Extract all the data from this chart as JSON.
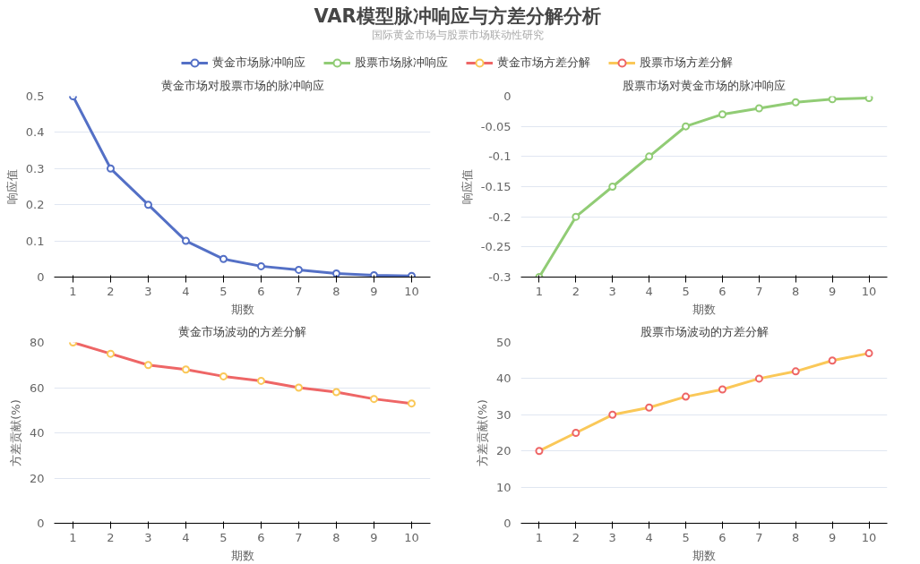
{
  "chart_data": [
    {
      "type": "line",
      "title": "黄金市场对股票市场的脉冲响应",
      "annotations": [
        "VAR模型脉冲响应与方差分解分析",
        "国际黄金市场与股票市场联动性研究"
      ],
      "xlabel": "期数",
      "ylabel": "响应值",
      "categories": [
        "1",
        "2",
        "3",
        "4",
        "5",
        "6",
        "7",
        "8",
        "9",
        "10"
      ],
      "series": [
        {
          "name": "黄金市场脉冲响应",
          "color": "#5470c6",
          "colors": [
            "#5470c6",
            "#5470c6",
            "#5470c6",
            "#5470c6",
            "#5470c6",
            "#5470c6",
            "#5470c6",
            "#5470c6",
            "#5470c6",
            "#5470c6"
          ],
          "values": [
            0.5,
            0.3,
            0.2,
            0.1,
            0.05,
            0.03,
            0.02,
            0.01,
            0.005,
            0.003
          ]
        }
      ],
      "ylim": [
        0,
        0.5
      ],
      "yticks": [
        0,
        0.1,
        0.2,
        0.3,
        0.4,
        0.5
      ],
      "grid": "y",
      "legend": "top",
      "marker": "circle",
      "line_style": "solid"
    },
    {
      "type": "line",
      "title": "股票市场对黄金市场的脉冲响应",
      "xlabel": "期数",
      "ylabel": "响应值",
      "categories": [
        "1",
        "2",
        "3",
        "4",
        "5",
        "6",
        "7",
        "8",
        "9",
        "10"
      ],
      "series": [
        {
          "name": "股票市场脉冲响应",
          "color": "#91cc75",
          "colors": [
            "#91cc75",
            "#91cc75",
            "#91cc75",
            "#91cc75",
            "#91cc75",
            "#91cc75",
            "#91cc75",
            "#91cc75",
            "#91cc75",
            "#91cc75"
          ],
          "values": [
            -0.3,
            -0.2,
            -0.15,
            -0.1,
            -0.05,
            -0.03,
            -0.02,
            -0.01,
            -0.005,
            -0.003
          ]
        }
      ],
      "ylim": [
        -0.3,
        0
      ],
      "yticks": [
        -0.3,
        -0.25,
        -0.2,
        -0.15,
        -0.1,
        -0.05,
        0
      ],
      "grid": "y",
      "legend": "top",
      "marker": "circle",
      "line_style": "solid"
    },
    {
      "type": "line",
      "title": "黄金市场波动的方差分解",
      "xlabel": "期数",
      "ylabel": "方差贡献(%)",
      "categories": [
        "1",
        "2",
        "3",
        "4",
        "5",
        "6",
        "7",
        "8",
        "9",
        "10"
      ],
      "series": [
        {
          "name": "黄金市场方差分解",
          "color": "#ee6666",
          "colors": [
            "#fac858",
            "#fac858",
            "#fac858",
            "#fac858",
            "#fac858",
            "#fac858",
            "#fac858",
            "#fac858",
            "#fac858",
            "#fac858"
          ],
          "values": [
            80,
            75,
            70,
            68,
            65,
            63,
            60,
            58,
            55,
            53
          ]
        }
      ],
      "ylim": [
        0,
        80
      ],
      "yticks": [
        0,
        20,
        40,
        60,
        80
      ],
      "grid": "y",
      "legend": "top",
      "marker": "circle",
      "line_style": "solid"
    },
    {
      "type": "line",
      "title": "股票市场波动的方差分解",
      "xlabel": "期数",
      "ylabel": "方差贡献(%)",
      "categories": [
        "1",
        "2",
        "3",
        "4",
        "5",
        "6",
        "7",
        "8",
        "9",
        "10"
      ],
      "series": [
        {
          "name": "股票市场方差分解",
          "color": "#fac858",
          "colors": [
            "#ee6666",
            "#ee6666",
            "#ee6666",
            "#ee6666",
            "#ee6666",
            "#ee6666",
            "#ee6666",
            "#ee6666",
            "#ee6666",
            "#ee6666"
          ],
          "values": [
            20,
            25,
            30,
            32,
            35,
            37,
            40,
            42,
            45,
            47
          ]
        }
      ],
      "ylim": [
        0,
        50
      ],
      "yticks": [
        0,
        10,
        20,
        30,
        40,
        50
      ],
      "grid": "y",
      "legend": "top",
      "marker": "circle",
      "line_style": "solid"
    }
  ]
}
